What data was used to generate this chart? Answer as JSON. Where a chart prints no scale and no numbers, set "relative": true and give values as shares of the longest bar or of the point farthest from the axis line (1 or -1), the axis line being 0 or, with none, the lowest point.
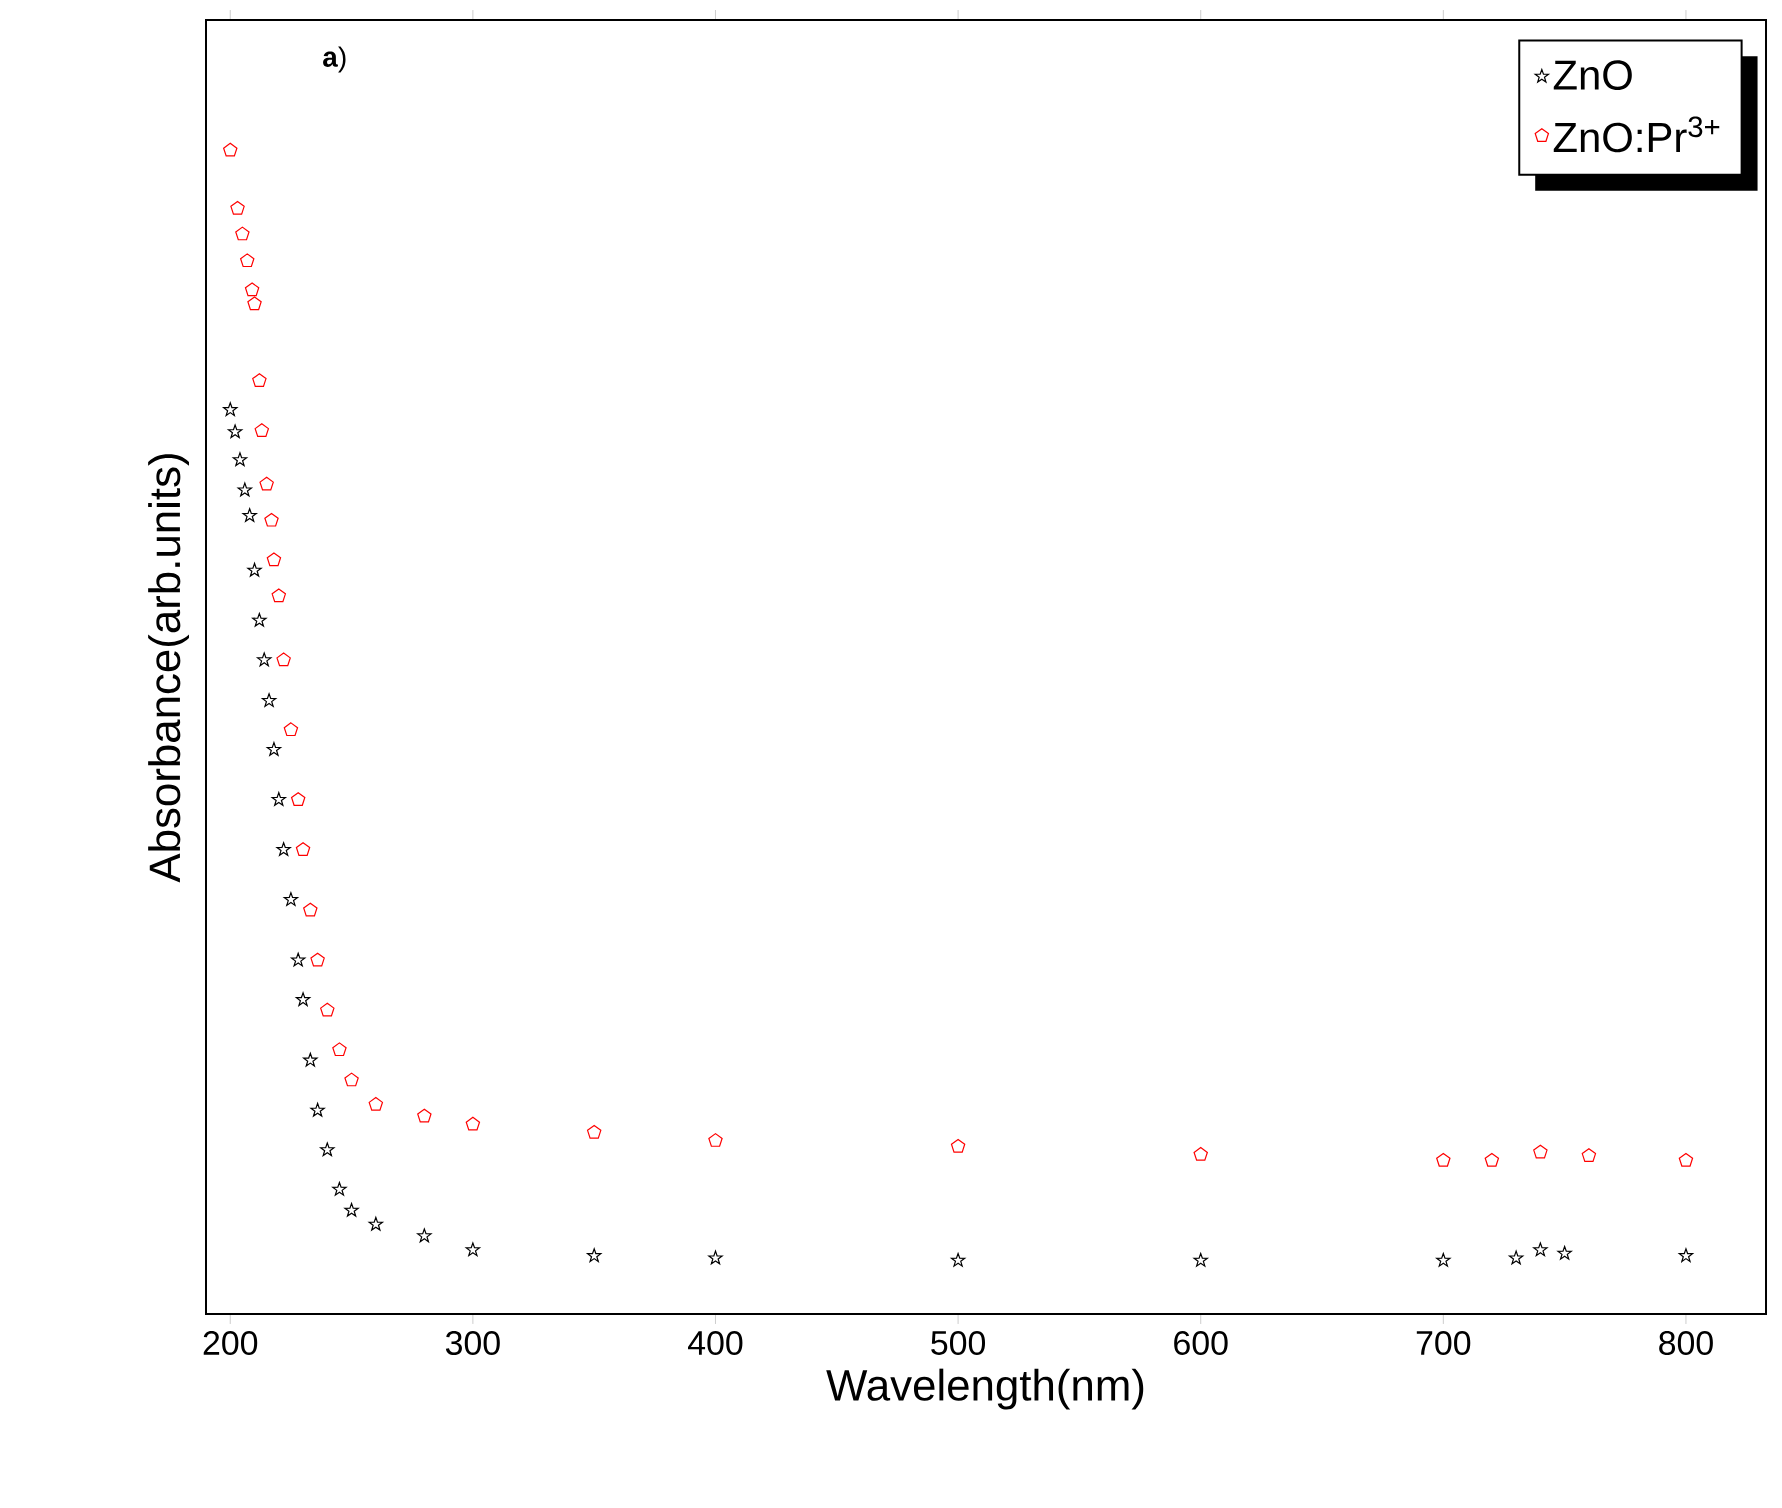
{
  "chart_data": {
    "type": "scatter",
    "relative": true,
    "xlabel": "Wavelength(nm)",
    "ylabel": "Absorbance(arb.units)",
    "annotations": [
      "**a**)"
    ],
    "xlim": [
      190,
      833
    ],
    "xticks": [
      200,
      300,
      400,
      500,
      600,
      700,
      800
    ],
    "legend": "top right",
    "grid": false,
    "series": [
      {
        "name": "ZnO",
        "color": "#000000",
        "marker": "star",
        "x": [
          200,
          202,
          204,
          206,
          208,
          210,
          212,
          214,
          216,
          218,
          220,
          222,
          225,
          228,
          230,
          233,
          236,
          240,
          245,
          250,
          260,
          280,
          300,
          350,
          400,
          500,
          600,
          700,
          730,
          740,
          750,
          800
        ],
        "values": [
          0.777,
          0.758,
          0.734,
          0.708,
          0.686,
          0.639,
          0.596,
          0.562,
          0.527,
          0.485,
          0.442,
          0.399,
          0.356,
          0.304,
          0.27,
          0.218,
          0.175,
          0.141,
          0.107,
          0.089,
          0.077,
          0.067,
          0.055,
          0.05,
          0.048,
          0.046,
          0.046,
          0.046,
          0.048,
          0.055,
          0.052,
          0.05
        ]
      },
      {
        "name": "ZnO:Pr$^{3+}$",
        "color": "#ff0000",
        "x": [
          200,
          203,
          205,
          207,
          209,
          210,
          212,
          213,
          215,
          217,
          218,
          220,
          222,
          225,
          228,
          230,
          233,
          236,
          240,
          245,
          250,
          260,
          280,
          300,
          350,
          400,
          500,
          600,
          700,
          720,
          740,
          760,
          800
        ],
        "values": [
          1.0,
          0.95,
          0.928,
          0.905,
          0.88,
          0.868,
          0.802,
          0.759,
          0.713,
          0.682,
          0.648,
          0.617,
          0.562,
          0.502,
          0.442,
          0.399,
          0.347,
          0.304,
          0.261,
          0.227,
          0.201,
          0.18,
          0.17,
          0.163,
          0.156,
          0.149,
          0.144,
          0.137,
          0.132,
          0.132,
          0.139,
          0.136,
          0.132
        ]
      }
    ]
  }
}
